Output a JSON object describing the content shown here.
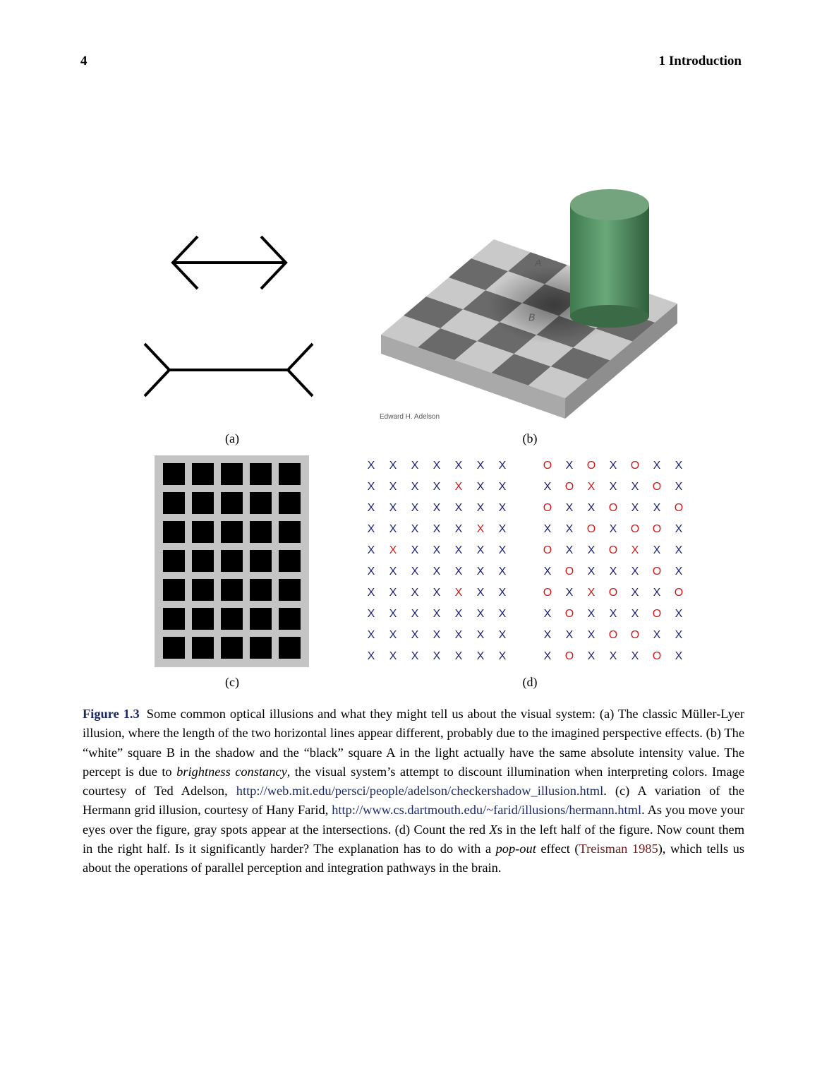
{
  "header": {
    "page_number": "4",
    "running_title": "1  Introduction"
  },
  "panels": {
    "a": "(a)",
    "b": "(b)",
    "c": "(c)",
    "d": "(d)"
  },
  "checker_image": {
    "square_a": "A",
    "square_b": "B",
    "credit": "Edward H. Adelson"
  },
  "colors": {
    "blue_letter": "#1c1f7a",
    "red_letter": "#d01a1a",
    "link": "#1b2a66",
    "citation": "#6b1a1a",
    "cylinder_green": "#4f8c5f"
  },
  "letter_grids": {
    "left": [
      [
        "X",
        "X",
        "X",
        "X",
        "X",
        "X",
        "X"
      ],
      [
        "X",
        "X",
        "X",
        "X",
        "X",
        "X",
        "X"
      ],
      [
        "X",
        "X",
        "X",
        "X",
        "X",
        "X",
        "X"
      ],
      [
        "X",
        "X",
        "X",
        "X",
        "X",
        "X",
        "X"
      ],
      [
        "X",
        "X",
        "X",
        "X",
        "X",
        "X",
        "X"
      ],
      [
        "X",
        "X",
        "X",
        "X",
        "X",
        "X",
        "X"
      ],
      [
        "X",
        "X",
        "X",
        "X",
        "X",
        "X",
        "X"
      ],
      [
        "X",
        "X",
        "X",
        "X",
        "X",
        "X",
        "X"
      ],
      [
        "X",
        "X",
        "X",
        "X",
        "X",
        "X",
        "X"
      ],
      [
        "X",
        "X",
        "X",
        "X",
        "X",
        "X",
        "X"
      ]
    ],
    "left_red": [
      [
        0,
        0,
        0,
        0,
        0,
        0,
        0
      ],
      [
        0,
        0,
        0,
        0,
        1,
        0,
        0
      ],
      [
        0,
        0,
        0,
        0,
        0,
        0,
        0
      ],
      [
        0,
        0,
        0,
        0,
        0,
        1,
        0
      ],
      [
        0,
        1,
        0,
        0,
        0,
        0,
        0
      ],
      [
        0,
        0,
        0,
        0,
        0,
        0,
        0
      ],
      [
        0,
        0,
        0,
        0,
        1,
        0,
        0
      ],
      [
        0,
        0,
        0,
        0,
        0,
        0,
        0
      ],
      [
        0,
        0,
        0,
        0,
        0,
        0,
        0
      ],
      [
        0,
        0,
        0,
        0,
        0,
        0,
        0
      ]
    ],
    "right": [
      [
        "O",
        "X",
        "O",
        "X",
        "O",
        "X",
        "X"
      ],
      [
        "X",
        "O",
        "X",
        "X",
        "X",
        "O",
        "X"
      ],
      [
        "O",
        "X",
        "X",
        "O",
        "X",
        "X",
        "O"
      ],
      [
        "X",
        "X",
        "O",
        "X",
        "O",
        "O",
        "X"
      ],
      [
        "O",
        "X",
        "X",
        "O",
        "X",
        "X",
        "X"
      ],
      [
        "X",
        "O",
        "X",
        "X",
        "X",
        "O",
        "X"
      ],
      [
        "O",
        "X",
        "X",
        "O",
        "X",
        "X",
        "O"
      ],
      [
        "X",
        "O",
        "X",
        "X",
        "X",
        "O",
        "X"
      ],
      [
        "X",
        "X",
        "X",
        "O",
        "O",
        "X",
        "X"
      ],
      [
        "X",
        "O",
        "X",
        "X",
        "X",
        "O",
        "X"
      ]
    ],
    "right_red": [
      [
        1,
        0,
        1,
        0,
        1,
        0,
        0
      ],
      [
        0,
        1,
        1,
        0,
        0,
        1,
        0
      ],
      [
        1,
        0,
        0,
        1,
        0,
        0,
        1
      ],
      [
        0,
        0,
        1,
        0,
        1,
        1,
        0
      ],
      [
        1,
        0,
        0,
        1,
        1,
        0,
        0
      ],
      [
        0,
        1,
        0,
        0,
        0,
        1,
        0
      ],
      [
        1,
        0,
        1,
        1,
        0,
        0,
        1
      ],
      [
        0,
        1,
        0,
        0,
        0,
        1,
        0
      ],
      [
        0,
        0,
        0,
        1,
        1,
        0,
        0
      ],
      [
        0,
        1,
        0,
        0,
        0,
        1,
        0
      ]
    ]
  },
  "caption": {
    "label": "Figure 1.3",
    "t1": "Some common optical illusions and what they might tell us about the visual system: (a) The classic Müller-Lyer illusion, where the length of the two horizontal lines appear different, probably due to the imagined perspective effects. (b) The “white” square B in the shadow and the “black” square A in the light actually have the same absolute intensity value. The percept is due to ",
    "em1": "brightness constancy",
    "t2": ", the visual system’s attempt to discount illumination when interpreting colors. Image courtesy of Ted Adelson, ",
    "link1": "http://web.mit.edu/persci/people/adelson/checkershadow_illusion.html",
    "t3": ". (c) A variation of the Hermann grid illusion, courtesy of Hany Farid, ",
    "link2": "http://www.cs.dartmouth.edu/~farid/illusions/hermann.html",
    "t4": ". As you move your eyes over the figure, gray spots appear at the intersections. (d) Count the red ",
    "em2": "X",
    "t5": "s in the left half of the figure. Now count them in the right half. Is it significantly harder? The explanation has to do with a ",
    "em3": "pop-out",
    "t6": " effect (",
    "cite": "Treisman 1985",
    "t7": "), which tells us about the operations of parallel perception and integration pathways in the brain."
  }
}
